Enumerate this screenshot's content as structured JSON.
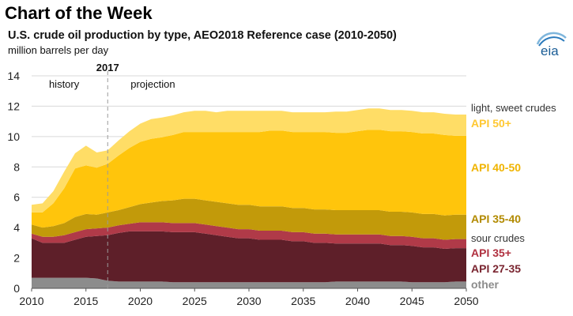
{
  "header": {
    "banner": "Chart of the Week",
    "title": "U.S. crude oil production by type, AEO2018 Reference case (2010-2050)",
    "subtitle": "million barrels per day",
    "logo_text": "eia"
  },
  "chart_data": {
    "type": "area",
    "stacked": true,
    "title": "U.S. crude oil production by type, AEO2018 Reference case (2010-2050)",
    "ylabel": "million barrels per day",
    "xlim": [
      2010,
      2050
    ],
    "ylim": [
      0,
      14
    ],
    "x_ticks": [
      2010,
      2015,
      2020,
      2025,
      2030,
      2035,
      2040,
      2045,
      2050
    ],
    "y_ticks": [
      0,
      2,
      4,
      6,
      8,
      10,
      12,
      14
    ],
    "grid": true,
    "divider": {
      "x": 2017,
      "label": "2017",
      "left_label": "history",
      "right_label": "projection"
    },
    "group_labels": {
      "light": "light, sweet crudes",
      "sour": "sour crudes"
    },
    "x": [
      2010,
      2011,
      2012,
      2013,
      2014,
      2015,
      2016,
      2017,
      2018,
      2019,
      2020,
      2021,
      2022,
      2023,
      2024,
      2025,
      2026,
      2027,
      2028,
      2029,
      2030,
      2031,
      2032,
      2033,
      2034,
      2035,
      2036,
      2037,
      2038,
      2039,
      2040,
      2041,
      2042,
      2043,
      2044,
      2045,
      2046,
      2047,
      2048,
      2049,
      2050
    ],
    "series": [
      {
        "name": "other",
        "color": "#8c8c8c",
        "values": [
          0.7,
          0.7,
          0.7,
          0.7,
          0.7,
          0.7,
          0.65,
          0.5,
          0.45,
          0.45,
          0.45,
          0.45,
          0.45,
          0.4,
          0.4,
          0.4,
          0.4,
          0.4,
          0.4,
          0.4,
          0.4,
          0.4,
          0.4,
          0.4,
          0.4,
          0.4,
          0.4,
          0.4,
          0.45,
          0.45,
          0.45,
          0.45,
          0.45,
          0.45,
          0.45,
          0.4,
          0.4,
          0.4,
          0.4,
          0.45,
          0.45
        ]
      },
      {
        "name": "API 27-35",
        "color": "#5e1f29",
        "values": [
          2.6,
          2.3,
          2.3,
          2.3,
          2.5,
          2.7,
          2.8,
          3.0,
          3.2,
          3.3,
          3.3,
          3.3,
          3.3,
          3.3,
          3.3,
          3.3,
          3.2,
          3.1,
          3.0,
          2.9,
          2.9,
          2.8,
          2.8,
          2.8,
          2.7,
          2.7,
          2.6,
          2.6,
          2.5,
          2.5,
          2.5,
          2.5,
          2.5,
          2.4,
          2.4,
          2.4,
          2.3,
          2.3,
          2.2,
          2.2,
          2.2
        ]
      },
      {
        "name": "API 35+",
        "color": "#b03a48",
        "values": [
          0.3,
          0.4,
          0.4,
          0.5,
          0.5,
          0.5,
          0.5,
          0.5,
          0.5,
          0.5,
          0.6,
          0.6,
          0.6,
          0.6,
          0.6,
          0.6,
          0.6,
          0.6,
          0.6,
          0.6,
          0.6,
          0.6,
          0.6,
          0.6,
          0.6,
          0.6,
          0.6,
          0.6,
          0.6,
          0.6,
          0.6,
          0.6,
          0.6,
          0.6,
          0.6,
          0.6,
          0.6,
          0.6,
          0.6,
          0.6,
          0.6
        ]
      },
      {
        "name": "API 35-40",
        "color": "#c29a0a",
        "values": [
          0.6,
          0.6,
          0.7,
          0.8,
          1.0,
          1.0,
          0.9,
          1.0,
          1.0,
          1.1,
          1.2,
          1.3,
          1.4,
          1.5,
          1.6,
          1.6,
          1.6,
          1.6,
          1.6,
          1.6,
          1.6,
          1.6,
          1.6,
          1.6,
          1.6,
          1.6,
          1.6,
          1.6,
          1.6,
          1.6,
          1.6,
          1.6,
          1.6,
          1.6,
          1.6,
          1.6,
          1.6,
          1.6,
          1.6,
          1.6,
          1.6
        ]
      },
      {
        "name": "API 40-50",
        "color": "#ffc50c",
        "values": [
          0.8,
          1.0,
          1.5,
          2.3,
          3.2,
          3.2,
          3.1,
          3.2,
          3.6,
          3.9,
          4.1,
          4.2,
          4.2,
          4.3,
          4.4,
          4.4,
          4.5,
          4.6,
          4.7,
          4.8,
          4.8,
          4.9,
          5.0,
          5.0,
          5.0,
          5.0,
          5.1,
          5.1,
          5.1,
          5.1,
          5.2,
          5.3,
          5.3,
          5.3,
          5.3,
          5.3,
          5.3,
          5.3,
          5.3,
          5.2,
          5.2
        ]
      },
      {
        "name": "API 50+",
        "color": "#ffdd66",
        "values": [
          0.5,
          0.6,
          0.8,
          1.1,
          1.0,
          1.3,
          1.0,
          0.9,
          1.0,
          1.1,
          1.2,
          1.3,
          1.3,
          1.3,
          1.3,
          1.4,
          1.4,
          1.3,
          1.4,
          1.4,
          1.4,
          1.4,
          1.3,
          1.3,
          1.3,
          1.3,
          1.3,
          1.3,
          1.4,
          1.4,
          1.4,
          1.4,
          1.4,
          1.4,
          1.4,
          1.4,
          1.4,
          1.4,
          1.4,
          1.4,
          1.4
        ]
      }
    ],
    "series_label_colors": {
      "API 50+": "#ffc832",
      "API 40-50": "#f0b400",
      "API 35-40": "#b28a00",
      "API 35+": "#b0303f",
      "API 27-35": "#7a2530",
      "other": "#8c8c8c"
    },
    "label_color_dark": "#333333"
  }
}
